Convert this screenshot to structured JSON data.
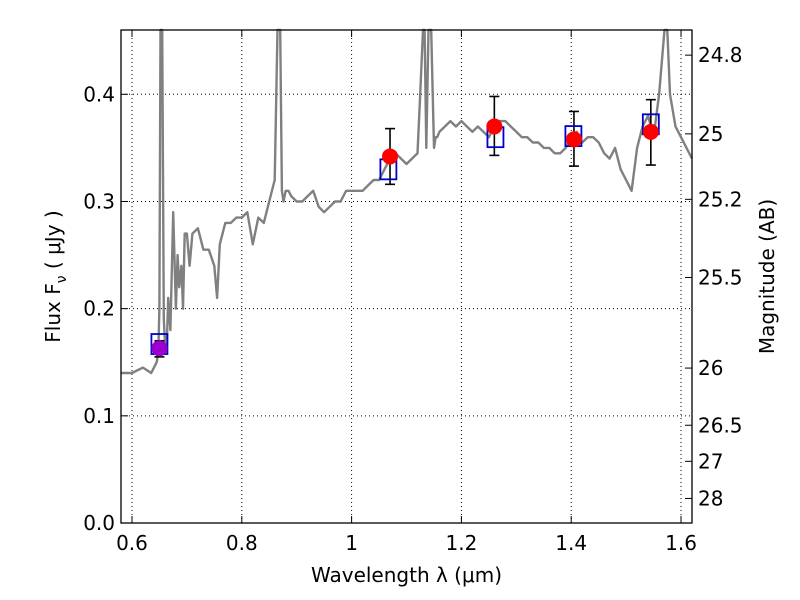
{
  "chart_data": {
    "type": "line",
    "title": "",
    "xlabel": "Wavelength  λ (μm)",
    "ylabel": "Flux  F",
    "ylabel_sub": "ν",
    "ylabel_units": " ( μJy )",
    "y2label": "Magnitude (AB)",
    "xlim": [
      0.58,
      1.62
    ],
    "ylim": [
      0.0,
      0.46
    ],
    "grid": true,
    "grid_style": "dotted",
    "x_ticks": [
      0.6,
      0.8,
      1.0,
      1.2,
      1.4,
      1.6
    ],
    "x_tick_labels": [
      "0.6",
      "0.8",
      "1",
      "1.2",
      "1.4",
      "1.6"
    ],
    "y_ticks": [
      0.0,
      0.1,
      0.2,
      0.3,
      0.4
    ],
    "y_tick_labels": [
      "0.0",
      "0.1",
      "0.2",
      "0.3",
      "0.4"
    ],
    "y2_ticks": [
      {
        "label": "24.8",
        "mag": 24.8
      },
      {
        "label": "25",
        "mag": 25.0
      },
      {
        "label": "25.2",
        "mag": 25.2
      },
      {
        "label": "25.5",
        "mag": 25.5
      },
      {
        "label": "26",
        "mag": 26.0
      },
      {
        "label": "26.5",
        "mag": 26.5
      },
      {
        "label": "27",
        "mag": 27.0
      },
      {
        "label": "28",
        "mag": 28.0
      }
    ],
    "series": [
      {
        "kind": "spectrum",
        "color": "#808080",
        "x": [
          0.58,
          0.6,
          0.62,
          0.635,
          0.645,
          0.648,
          0.65,
          0.652,
          0.655,
          0.658,
          0.66,
          0.663,
          0.666,
          0.67,
          0.675,
          0.68,
          0.683,
          0.686,
          0.69,
          0.693,
          0.696,
          0.7,
          0.705,
          0.71,
          0.72,
          0.73,
          0.74,
          0.75,
          0.755,
          0.76,
          0.77,
          0.78,
          0.79,
          0.8,
          0.81,
          0.82,
          0.83,
          0.84,
          0.85,
          0.86,
          0.865,
          0.87,
          0.873,
          0.876,
          0.88,
          0.885,
          0.89,
          0.9,
          0.91,
          0.92,
          0.93,
          0.94,
          0.95,
          0.96,
          0.97,
          0.98,
          0.99,
          1.0,
          1.01,
          1.02,
          1.03,
          1.04,
          1.05,
          1.06,
          1.07,
          1.08,
          1.09,
          1.1,
          1.11,
          1.12,
          1.125,
          1.13,
          1.133,
          1.136,
          1.14,
          1.145,
          1.15,
          1.153,
          1.156,
          1.16,
          1.17,
          1.18,
          1.19,
          1.2,
          1.21,
          1.22,
          1.23,
          1.24,
          1.25,
          1.26,
          1.27,
          1.28,
          1.29,
          1.3,
          1.31,
          1.32,
          1.33,
          1.34,
          1.35,
          1.36,
          1.37,
          1.38,
          1.39,
          1.4,
          1.41,
          1.42,
          1.43,
          1.44,
          1.45,
          1.46,
          1.47,
          1.48,
          1.49,
          1.5,
          1.51,
          1.52,
          1.53,
          1.54,
          1.55,
          1.56,
          1.57,
          1.575,
          1.58,
          1.59,
          1.6,
          1.61,
          1.62
        ],
        "y": [
          0.14,
          0.14,
          0.145,
          0.14,
          0.15,
          0.16,
          0.2,
          0.46,
          0.46,
          0.19,
          0.17,
          0.16,
          0.21,
          0.18,
          0.29,
          0.2,
          0.25,
          0.22,
          0.24,
          0.2,
          0.27,
          0.27,
          0.24,
          0.27,
          0.275,
          0.255,
          0.255,
          0.24,
          0.21,
          0.26,
          0.28,
          0.28,
          0.285,
          0.285,
          0.29,
          0.26,
          0.285,
          0.28,
          0.3,
          0.32,
          0.46,
          0.46,
          0.31,
          0.3,
          0.31,
          0.31,
          0.305,
          0.3,
          0.3,
          0.305,
          0.31,
          0.295,
          0.29,
          0.295,
          0.3,
          0.3,
          0.31,
          0.31,
          0.31,
          0.31,
          0.315,
          0.32,
          0.32,
          0.33,
          0.34,
          0.345,
          0.34,
          0.335,
          0.34,
          0.345,
          0.4,
          0.46,
          0.46,
          0.35,
          0.46,
          0.46,
          0.35,
          0.36,
          0.36,
          0.365,
          0.37,
          0.375,
          0.37,
          0.375,
          0.37,
          0.365,
          0.37,
          0.365,
          0.36,
          0.37,
          0.375,
          0.375,
          0.37,
          0.365,
          0.36,
          0.36,
          0.355,
          0.355,
          0.35,
          0.35,
          0.345,
          0.345,
          0.35,
          0.36,
          0.365,
          0.355,
          0.36,
          0.36,
          0.355,
          0.345,
          0.34,
          0.35,
          0.33,
          0.32,
          0.31,
          0.35,
          0.37,
          0.38,
          0.36,
          0.4,
          0.46,
          0.46,
          0.4,
          0.37,
          0.36,
          0.35,
          0.34
        ]
      },
      {
        "kind": "markers-circle",
        "color": "#ff0000",
        "points": [
          {
            "x": 0.65,
            "y": 0.163,
            "yerr": [
              0.155,
              0.17
            ],
            "color": "#9900cc"
          },
          {
            "x": 1.07,
            "y": 0.342,
            "yerr": [
              0.316,
              0.368
            ]
          },
          {
            "x": 1.26,
            "y": 0.37,
            "yerr": [
              0.343,
              0.398
            ]
          },
          {
            "x": 1.405,
            "y": 0.358,
            "yerr": [
              0.333,
              0.384
            ]
          },
          {
            "x": 1.545,
            "y": 0.365,
            "yerr": [
              0.334,
              0.395
            ]
          }
        ]
      },
      {
        "kind": "markers-square",
        "color": "#0000cc",
        "points": [
          {
            "x": 0.65,
            "y": 0.167
          },
          {
            "x": 1.067,
            "y": 0.33
          },
          {
            "x": 1.262,
            "y": 0.36
          },
          {
            "x": 1.404,
            "y": 0.361
          },
          {
            "x": 1.545,
            "y": 0.372
          }
        ]
      }
    ]
  }
}
